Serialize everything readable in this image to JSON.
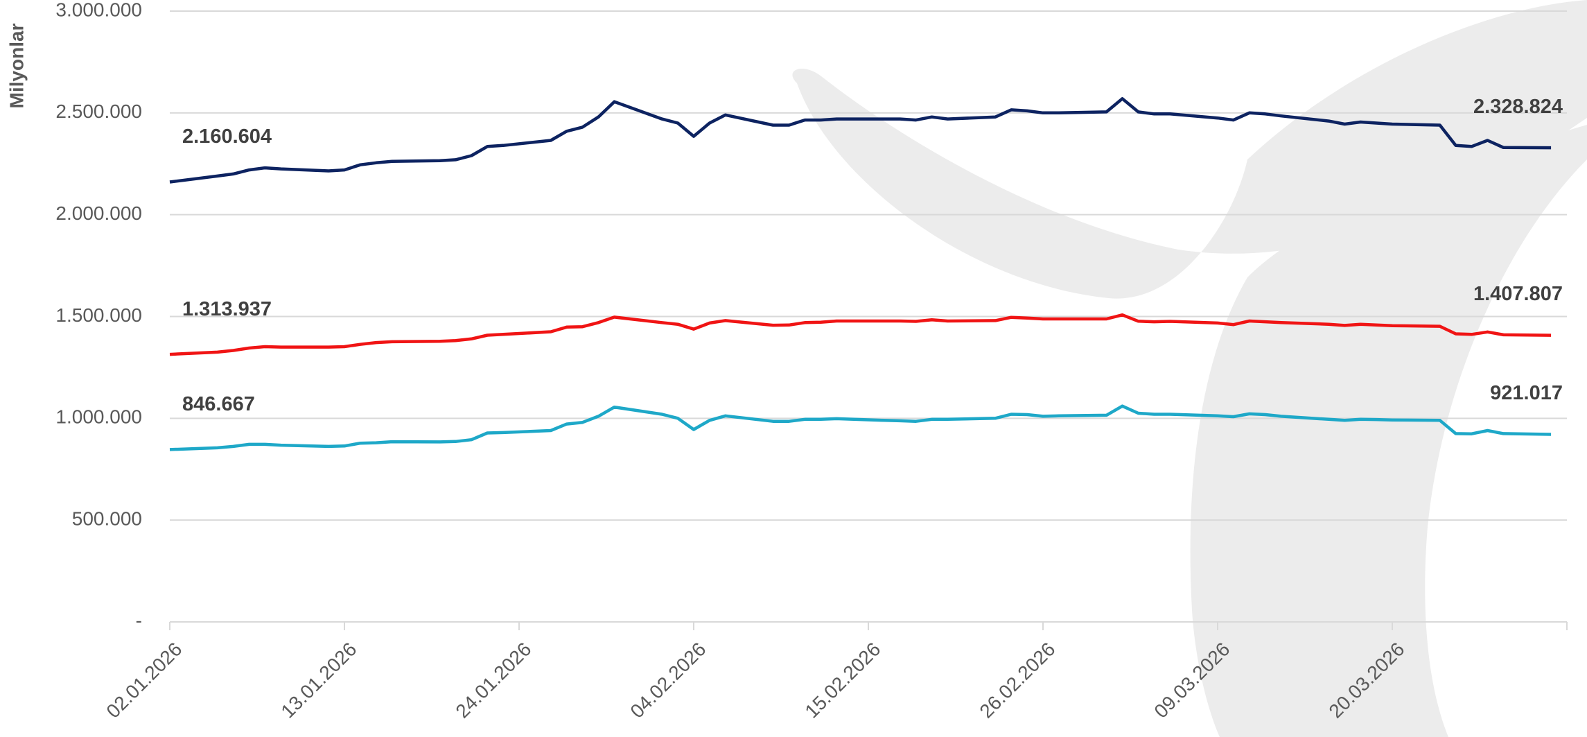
{
  "chart_data": {
    "type": "line",
    "y_label": "Milyonlar",
    "x": [
      "02.01.2026",
      "05.01.2026",
      "06.01.2026",
      "07.01.2026",
      "08.01.2026",
      "09.01.2026",
      "12.01.2026",
      "13.01.2026",
      "14.01.2026",
      "15.01.2026",
      "16.01.2026",
      "19.01.2026",
      "20.01.2026",
      "21.01.2026",
      "22.01.2026",
      "23.01.2026",
      "26.01.2026",
      "27.01.2026",
      "28.01.2026",
      "29.01.2026",
      "30.01.2026",
      "02.02.2026",
      "03.02.2026",
      "04.02.2026",
      "05.02.2026",
      "06.02.2026",
      "09.02.2026",
      "10.02.2026",
      "11.02.2026",
      "12.02.2026",
      "13.02.2026",
      "16.02.2026",
      "17.02.2026",
      "18.02.2026",
      "19.02.2026",
      "20.02.2026",
      "23.02.2026",
      "24.02.2026",
      "25.02.2026",
      "26.02.2026",
      "27.02.2026",
      "02.03.2026",
      "03.03.2026",
      "04.03.2026",
      "05.03.2026",
      "06.03.2026",
      "09.03.2026",
      "10.03.2026",
      "11.03.2026",
      "12.03.2026",
      "13.03.2026",
      "16.03.2026",
      "17.03.2026",
      "18.03.2026",
      "19.03.2026",
      "20.03.2026",
      "23.03.2026",
      "24.03.2026",
      "25.03.2026",
      "26.03.2026",
      "27.03.2026",
      "30.03.2026"
    ],
    "xlim": [
      "02.01.2026",
      "31.03.2026"
    ],
    "xticks": [
      "02.01.2026",
      "13.01.2026",
      "24.01.2026",
      "04.02.2026",
      "15.02.2026",
      "26.02.2026",
      "09.03.2026",
      "20.03.2026"
    ],
    "ylim": [
      0,
      3000000
    ],
    "yticks": [
      {
        "value": 0,
        "label": "-"
      },
      {
        "value": 500000,
        "label": "500.000"
      },
      {
        "value": 1000000,
        "label": "1.000.000"
      },
      {
        "value": 1500000,
        "label": "1.500.000"
      },
      {
        "value": 2000000,
        "label": "2.000.000"
      },
      {
        "value": 2500000,
        "label": "2.500.000"
      },
      {
        "value": 3000000,
        "label": "3.000.000"
      }
    ],
    "grid": true,
    "series": [
      {
        "color": "#0d2361",
        "values": [
          2160604,
          2190000,
          2200000,
          2220000,
          2230000,
          2225000,
          2215000,
          2220000,
          2245000,
          2255000,
          2262000,
          2265000,
          2270000,
          2290000,
          2335000,
          2340000,
          2365000,
          2410000,
          2430000,
          2480000,
          2555000,
          2470000,
          2450000,
          2385000,
          2450000,
          2490000,
          2440000,
          2440000,
          2465000,
          2465000,
          2470000,
          2470000,
          2470000,
          2465000,
          2480000,
          2470000,
          2480000,
          2515000,
          2510000,
          2500000,
          2500000,
          2505000,
          2570000,
          2505000,
          2495000,
          2495000,
          2475000,
          2465000,
          2500000,
          2495000,
          2485000,
          2460000,
          2445000,
          2455000,
          2450000,
          2445000,
          2440000,
          2340000,
          2335000,
          2365000,
          2330000,
          2328824
        ],
        "value_labels": [
          "2.160.604",
          null,
          null,
          null,
          null,
          null,
          null,
          null,
          null,
          null,
          null,
          null,
          null,
          null,
          null,
          null,
          null,
          null,
          null,
          null,
          null,
          null,
          null,
          null,
          null,
          null,
          null,
          null,
          null,
          null,
          null,
          null,
          null,
          null,
          null,
          null,
          null,
          null,
          null,
          null,
          null,
          null,
          null,
          null,
          null,
          null,
          null,
          null,
          null,
          null,
          null,
          null,
          null,
          null,
          null,
          null,
          null,
          null,
          null,
          null,
          null,
          "2.328.824"
        ]
      },
      {
        "color": "#f01414",
        "values": [
          1313937,
          1325000,
          1333000,
          1345000,
          1352000,
          1350000,
          1350000,
          1352000,
          1363000,
          1372000,
          1376000,
          1378000,
          1382000,
          1390000,
          1408000,
          1412000,
          1425000,
          1448000,
          1450000,
          1470000,
          1497000,
          1470000,
          1462000,
          1438000,
          1468000,
          1480000,
          1457000,
          1458000,
          1470000,
          1472000,
          1478000,
          1478000,
          1478000,
          1476000,
          1484000,
          1478000,
          1480000,
          1496000,
          1492000,
          1488000,
          1488000,
          1488000,
          1508000,
          1477000,
          1474000,
          1476000,
          1468000,
          1460000,
          1478000,
          1474000,
          1470000,
          1462000,
          1456000,
          1462000,
          1458000,
          1455000,
          1452000,
          1415000,
          1412000,
          1424000,
          1410000,
          1407807
        ],
        "value_labels": [
          "1.313.937",
          null,
          null,
          null,
          null,
          null,
          null,
          null,
          null,
          null,
          null,
          null,
          null,
          null,
          null,
          null,
          null,
          null,
          null,
          null,
          null,
          null,
          null,
          null,
          null,
          null,
          null,
          null,
          null,
          null,
          null,
          null,
          null,
          null,
          null,
          null,
          null,
          null,
          null,
          null,
          null,
          null,
          null,
          null,
          null,
          null,
          null,
          null,
          null,
          null,
          null,
          null,
          null,
          null,
          null,
          null,
          null,
          null,
          null,
          null,
          null,
          "1.407.807"
        ]
      },
      {
        "color": "#1ea8c8",
        "values": [
          846667,
          855000,
          862000,
          872000,
          872000,
          868000,
          862000,
          864000,
          878000,
          880000,
          885000,
          884000,
          886000,
          895000,
          928000,
          930000,
          940000,
          972000,
          980000,
          1010000,
          1055000,
          1020000,
          1000000,
          945000,
          990000,
          1012000,
          985000,
          985000,
          995000,
          995000,
          998000,
          990000,
          988000,
          985000,
          995000,
          995000,
          1000000,
          1020000,
          1018000,
          1010000,
          1012000,
          1015000,
          1060000,
          1025000,
          1020000,
          1020000,
          1012000,
          1008000,
          1022000,
          1018000,
          1010000,
          995000,
          990000,
          995000,
          994000,
          992000,
          990000,
          925000,
          924000,
          940000,
          925000,
          921017
        ],
        "value_labels": [
          "846.667",
          null,
          null,
          null,
          null,
          null,
          null,
          null,
          null,
          null,
          null,
          null,
          null,
          null,
          null,
          null,
          null,
          null,
          null,
          null,
          null,
          null,
          null,
          null,
          null,
          null,
          null,
          null,
          null,
          null,
          null,
          null,
          null,
          null,
          null,
          null,
          null,
          null,
          null,
          null,
          null,
          null,
          null,
          null,
          null,
          null,
          null,
          null,
          null,
          null,
          null,
          null,
          null,
          null,
          null,
          null,
          null,
          null,
          null,
          null,
          null,
          "921.017"
        ]
      }
    ]
  }
}
